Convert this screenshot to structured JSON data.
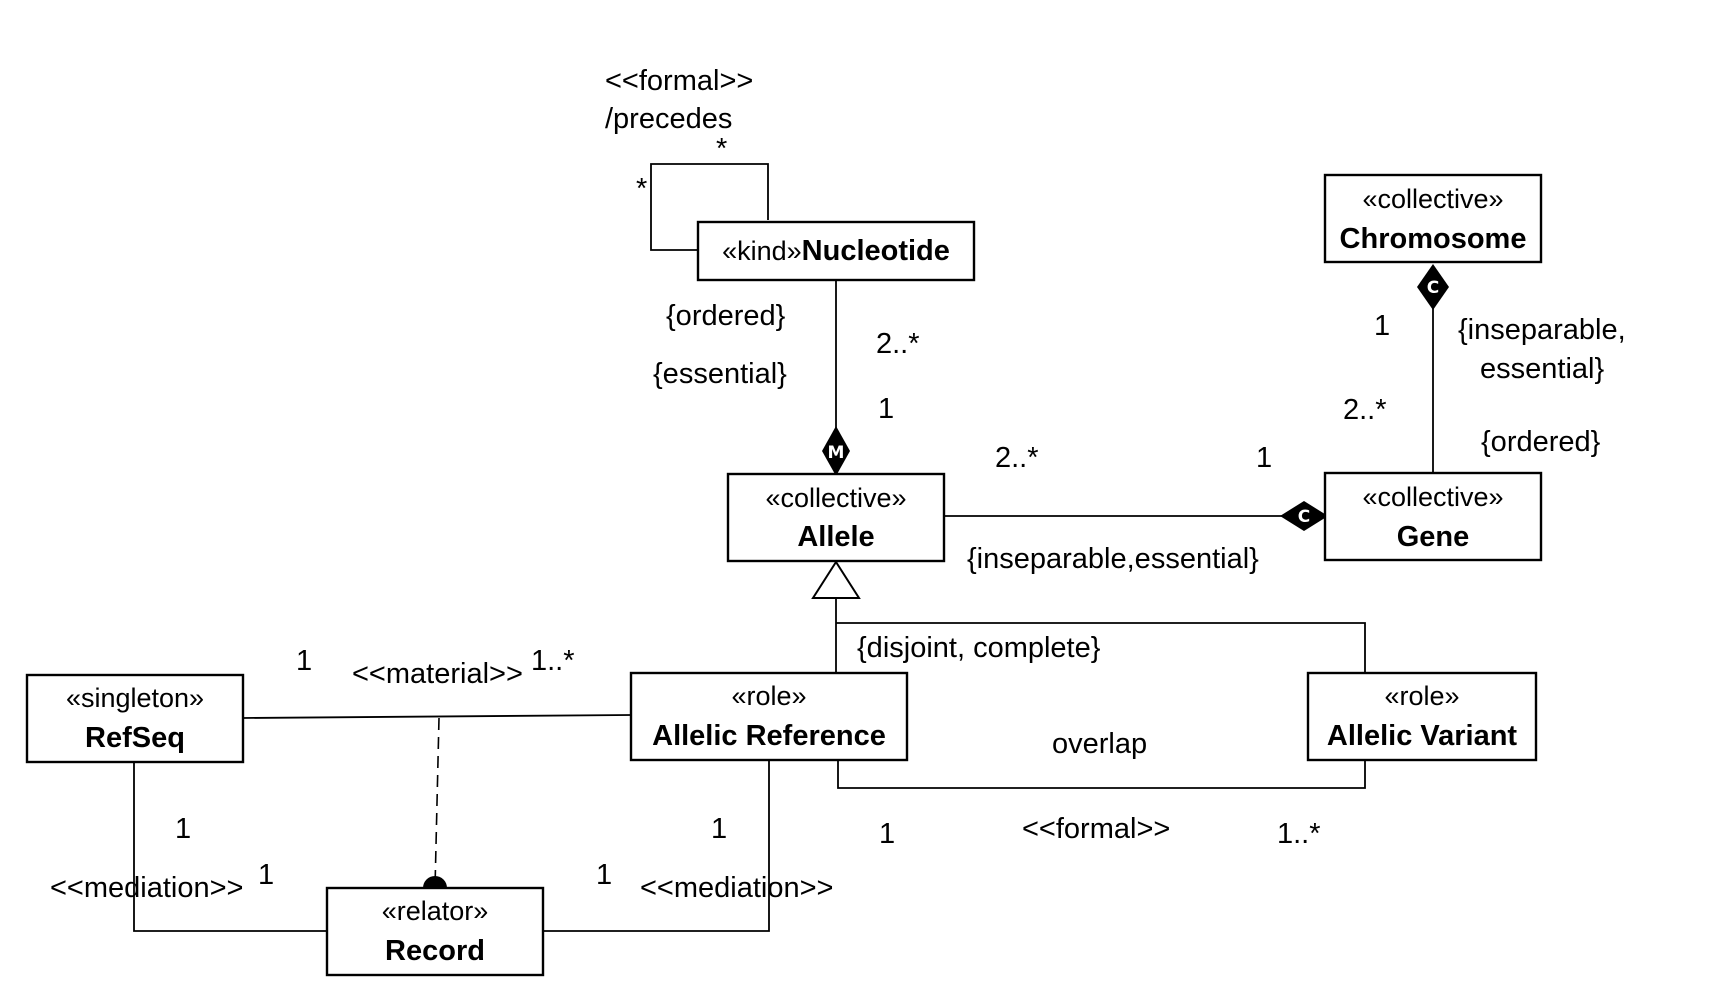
{
  "classes": {
    "nucleotide": {
      "stereotype": "«kind»",
      "name": "Nucleotide"
    },
    "chromosome": {
      "stereotype": "«collective»",
      "name": "Chromosome"
    },
    "allele": {
      "stereotype": "«collective»",
      "name": "Allele"
    },
    "gene": {
      "stereotype": "«collective»",
      "name": "Gene"
    },
    "refseq": {
      "stereotype": "«singleton»",
      "name": "RefSeq"
    },
    "allelic_reference": {
      "stereotype": "«role»",
      "name": "Allelic Reference"
    },
    "allelic_variant": {
      "stereotype": "«role»",
      "name": "Allelic Variant"
    },
    "record": {
      "stereotype": "«relator»",
      "name": "Record"
    }
  },
  "relations": {
    "precedes": {
      "stereotype": "<<formal>>",
      "name": "/precedes",
      "mult_top": "*",
      "mult_left": "*"
    },
    "nucleotide_allele": {
      "constraint_ordered": "{ordered}",
      "constraint_essential": "{essential}",
      "mult_nucleotide": "2..*",
      "mult_allele": "1",
      "diamond_letter": "M"
    },
    "chromosome_gene": {
      "constraint": "{inseparable,",
      "constraint_2": "essential}",
      "constraint_ordered": "{ordered}",
      "mult_chromosome": "1",
      "mult_gene": "2..*",
      "diamond_letter": "C"
    },
    "allele_gene": {
      "mult_allele": "2..*",
      "mult_gene": "1",
      "constraint": "{inseparable,essential}",
      "diamond_letter": "C"
    },
    "generalization": {
      "constraint": "{disjoint, complete}"
    },
    "material": {
      "stereotype": "<<material>>",
      "mult_refseq": "1",
      "mult_reference": "1..*"
    },
    "overlap": {
      "name": "overlap",
      "stereotype": "<<formal>>",
      "mult_reference": "1",
      "mult_variant": "1..*"
    },
    "mediation_left": {
      "stereotype": "<<mediation>>",
      "mult_refseq": "1",
      "mult_record": "1"
    },
    "mediation_right": {
      "stereotype": "<<mediation>>",
      "mult_reference": "1",
      "mult_record": "1"
    }
  }
}
